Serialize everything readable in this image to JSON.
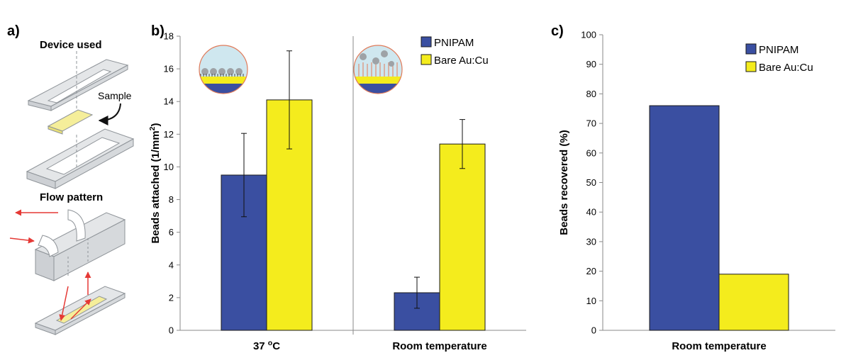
{
  "figure": {
    "panel_a": {
      "letter": "a)",
      "device_title": "Device used",
      "sample_label": "Sample",
      "flow_title": "Flow pattern"
    },
    "panel_b": {
      "letter": "b)"
    },
    "panel_c": {
      "letter": "c)"
    }
  },
  "colors": {
    "pnipam": "#3a4fa1",
    "bare": "#f4ec1d",
    "arrow_red": "#e53935",
    "device_grey": "#e4e6e8",
    "sample_yellow": "#f5ee9a"
  },
  "chart_data": [
    {
      "type": "bar",
      "panel": "b",
      "categories": [
        "37 °C",
        "Room temperature"
      ],
      "category_labels": [
        {
          "text": "37 ",
          "sup": "o",
          "tail": "C"
        },
        {
          "text": "Room temperature"
        }
      ],
      "series": [
        {
          "name": "PNIPAM",
          "color": "#3a4fa1",
          "values": [
            9.5,
            2.3
          ],
          "errors": [
            2.55,
            0.95
          ]
        },
        {
          "name": "Bare Au:Cu",
          "color": "#f4ec1d",
          "values": [
            14.1,
            11.4
          ],
          "errors": [
            3.0,
            1.5
          ]
        }
      ],
      "ylabel": {
        "text": "Beads attached (1/mm",
        "sup": "2",
        "tail": ")"
      },
      "ylim": [
        0,
        18
      ],
      "yticks": [
        0,
        2,
        4,
        6,
        8,
        10,
        12,
        14,
        16,
        18
      ],
      "legend_position": "top-right",
      "grid": false
    },
    {
      "type": "bar",
      "panel": "c",
      "categories": [
        "Room temperature"
      ],
      "series": [
        {
          "name": "PNIPAM",
          "color": "#3a4fa1",
          "values": [
            76
          ]
        },
        {
          "name": "Bare Au:Cu",
          "color": "#f4ec1d",
          "values": [
            19
          ]
        }
      ],
      "ylabel": {
        "text": "Beads recovered (%)"
      },
      "ylim": [
        0,
        100
      ],
      "yticks": [
        0,
        10,
        20,
        30,
        40,
        50,
        60,
        70,
        80,
        90,
        100
      ],
      "legend_position": "top-right",
      "grid": false
    }
  ]
}
